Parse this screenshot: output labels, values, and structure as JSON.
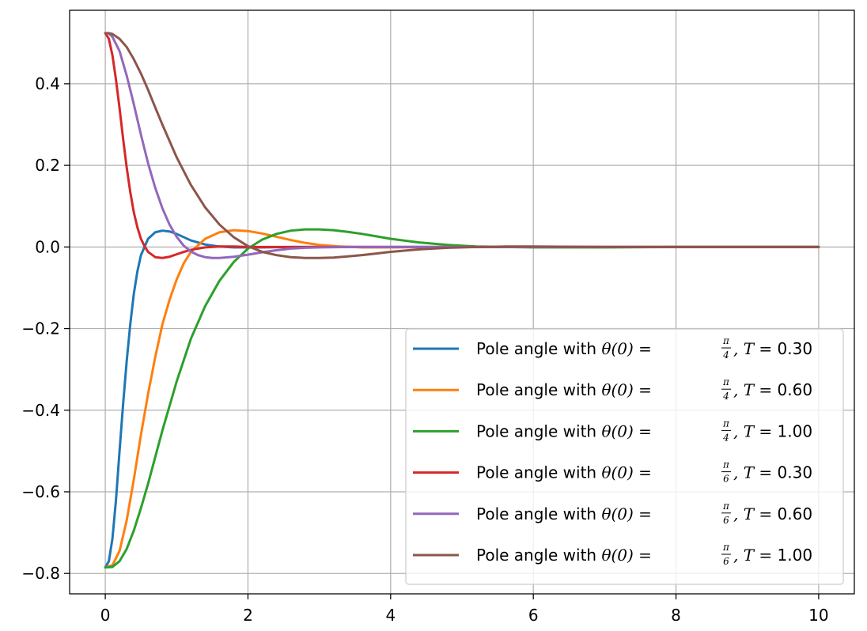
{
  "chart_data": {
    "type": "line",
    "title": "",
    "xlabel": "",
    "ylabel": "",
    "xlim": [
      -0.5,
      10.5
    ],
    "ylim": [
      -0.85,
      0.58
    ],
    "x_ticks": [
      0,
      2,
      4,
      6,
      8,
      10
    ],
    "y_ticks": [
      -0.8,
      -0.6,
      -0.4,
      -0.2,
      0.0,
      0.2,
      0.4
    ],
    "x_tick_labels": [
      "0",
      "2",
      "4",
      "6",
      "8",
      "10"
    ],
    "y_tick_labels": [
      "−0.8",
      "−0.6",
      "−0.4",
      "−0.2",
      "0.0",
      "0.2",
      "0.4"
    ],
    "grid": true,
    "legend_position": "lower-right",
    "series": [
      {
        "name": "Pole angle with θ(0) = π/4, T = 0.30",
        "legend": {
          "prefix": "Pole angle with ",
          "math": "θ(0) = ",
          "frac_num": "π",
          "frac_den": "4",
          "t_math": ", T = ",
          "t_value": "0.30"
        },
        "color": "#1f77b4",
        "x": [
          0,
          0.05,
          0.1,
          0.15,
          0.2,
          0.25,
          0.3,
          0.35,
          0.4,
          0.45,
          0.5,
          0.6,
          0.7,
          0.8,
          0.9,
          1.0,
          1.1,
          1.2,
          1.4,
          1.6,
          1.8,
          2.0,
          2.2,
          2.6,
          3.0,
          4.0,
          5.0,
          6.0,
          8.0,
          10.0
        ],
        "values": [
          -0.785,
          -0.77,
          -0.715,
          -0.62,
          -0.5,
          -0.385,
          -0.28,
          -0.19,
          -0.115,
          -0.06,
          -0.02,
          0.02,
          0.036,
          0.04,
          0.038,
          0.032,
          0.024,
          0.016,
          0.006,
          0.001,
          -0.001,
          -0.001,
          -0.001,
          0.0,
          0.0,
          0.0,
          0.0,
          0.0,
          0.0,
          0.0
        ]
      },
      {
        "name": "Pole angle with θ(0) = π/4, T = 0.60",
        "legend": {
          "prefix": "Pole angle with ",
          "math": "θ(0) = ",
          "frac_num": "π",
          "frac_den": "4",
          "t_math": ", T = ",
          "t_value": "0.60"
        },
        "color": "#ff7f0e",
        "x": [
          0,
          0.1,
          0.2,
          0.3,
          0.4,
          0.5,
          0.6,
          0.7,
          0.8,
          0.9,
          1.0,
          1.1,
          1.2,
          1.4,
          1.6,
          1.8,
          2.0,
          2.2,
          2.4,
          2.6,
          2.8,
          3.0,
          3.3,
          3.6,
          4.0,
          5.0,
          6.0,
          8.0,
          10.0
        ],
        "values": [
          -0.785,
          -0.78,
          -0.745,
          -0.67,
          -0.57,
          -0.46,
          -0.36,
          -0.27,
          -0.19,
          -0.13,
          -0.08,
          -0.04,
          -0.012,
          0.02,
          0.036,
          0.041,
          0.039,
          0.033,
          0.025,
          0.017,
          0.01,
          0.005,
          0.001,
          -0.001,
          -0.001,
          0.0,
          0.0,
          0.0,
          0.0
        ]
      },
      {
        "name": "Pole angle with θ(0) = π/4, T = 1.00",
        "legend": {
          "prefix": "Pole angle with ",
          "math": "θ(0) = ",
          "frac_num": "π",
          "frac_den": "4",
          "t_math": ", T = ",
          "t_value": "1.00"
        },
        "color": "#2ca02c",
        "x": [
          0,
          0.1,
          0.2,
          0.3,
          0.4,
          0.5,
          0.6,
          0.7,
          0.8,
          0.9,
          1.0,
          1.2,
          1.4,
          1.6,
          1.8,
          2.0,
          2.2,
          2.4,
          2.6,
          2.8,
          3.0,
          3.2,
          3.4,
          3.6,
          3.8,
          4.0,
          4.4,
          4.8,
          5.2,
          5.6,
          6.0,
          7.0,
          8.0,
          10.0
        ],
        "values": [
          -0.785,
          -0.784,
          -0.77,
          -0.74,
          -0.695,
          -0.64,
          -0.58,
          -0.515,
          -0.45,
          -0.39,
          -0.33,
          -0.225,
          -0.145,
          -0.083,
          -0.037,
          -0.004,
          0.018,
          0.032,
          0.04,
          0.043,
          0.043,
          0.041,
          0.037,
          0.032,
          0.026,
          0.02,
          0.011,
          0.005,
          0.001,
          0.0,
          -0.001,
          -0.001,
          0.0,
          0.0
        ]
      },
      {
        "name": "Pole angle with θ(0) = π/6, T = 0.30",
        "legend": {
          "prefix": "Pole angle with ",
          "math": "θ(0) = ",
          "frac_num": "π",
          "frac_den": "6",
          "t_math": ", T = ",
          "t_value": "0.30"
        },
        "color": "#d62728",
        "x": [
          0,
          0.05,
          0.1,
          0.15,
          0.2,
          0.25,
          0.3,
          0.35,
          0.4,
          0.45,
          0.5,
          0.55,
          0.6,
          0.7,
          0.8,
          0.9,
          1.0,
          1.1,
          1.2,
          1.4,
          1.6,
          1.8,
          2.0,
          2.5,
          3.0,
          4.0,
          6.0,
          8.0,
          10.0
        ],
        "values": [
          0.524,
          0.51,
          0.47,
          0.41,
          0.34,
          0.265,
          0.195,
          0.135,
          0.085,
          0.048,
          0.02,
          0.002,
          -0.012,
          -0.025,
          -0.027,
          -0.024,
          -0.018,
          -0.012,
          -0.007,
          -0.001,
          0.001,
          0.001,
          0.0,
          0.0,
          0.0,
          0.0,
          0.0,
          0.0,
          0.0
        ]
      },
      {
        "name": "Pole angle with θ(0) = π/6, T = 0.60",
        "legend": {
          "prefix": "Pole angle with ",
          "math": "θ(0) = ",
          "frac_num": "π",
          "frac_den": "6",
          "t_math": ", T = ",
          "t_value": "0.60"
        },
        "color": "#9467bd",
        "x": [
          0,
          0.05,
          0.1,
          0.2,
          0.3,
          0.4,
          0.5,
          0.6,
          0.7,
          0.8,
          0.9,
          1.0,
          1.1,
          1.2,
          1.3,
          1.4,
          1.5,
          1.6,
          1.8,
          2.0,
          2.2,
          2.4,
          2.6,
          2.8,
          3.0,
          3.4,
          4.0,
          5.0,
          6.0,
          8.0,
          10.0
        ],
        "values": [
          0.524,
          0.523,
          0.515,
          0.48,
          0.42,
          0.35,
          0.275,
          0.205,
          0.145,
          0.095,
          0.055,
          0.025,
          0.003,
          -0.011,
          -0.02,
          -0.025,
          -0.027,
          -0.027,
          -0.024,
          -0.019,
          -0.013,
          -0.008,
          -0.004,
          -0.002,
          -0.001,
          0.0,
          0.0,
          0.0,
          0.0,
          0.0,
          0.0
        ]
      },
      {
        "name": "Pole angle with θ(0) = π/6, T = 1.00",
        "legend": {
          "prefix": "Pole angle with ",
          "math": "θ(0) = ",
          "frac_num": "π",
          "frac_den": "6",
          "t_math": ", T = ",
          "t_value": "1.00"
        },
        "color": "#8c564b",
        "x": [
          0,
          0.05,
          0.1,
          0.2,
          0.3,
          0.4,
          0.5,
          0.6,
          0.7,
          0.8,
          1.0,
          1.2,
          1.4,
          1.6,
          1.8,
          2.0,
          2.2,
          2.4,
          2.6,
          2.8,
          3.0,
          3.2,
          3.4,
          3.6,
          3.8,
          4.0,
          4.4,
          4.8,
          5.2,
          5.6,
          6.0,
          7.0,
          8.0,
          10.0
        ],
        "values": [
          0.524,
          0.524,
          0.522,
          0.51,
          0.49,
          0.46,
          0.425,
          0.385,
          0.342,
          0.3,
          0.22,
          0.152,
          0.097,
          0.055,
          0.024,
          0.002,
          -0.012,
          -0.02,
          -0.025,
          -0.027,
          -0.027,
          -0.026,
          -0.023,
          -0.02,
          -0.016,
          -0.012,
          -0.006,
          -0.002,
          0.0,
          0.001,
          0.001,
          0.0,
          0.0,
          0.0
        ]
      }
    ]
  }
}
